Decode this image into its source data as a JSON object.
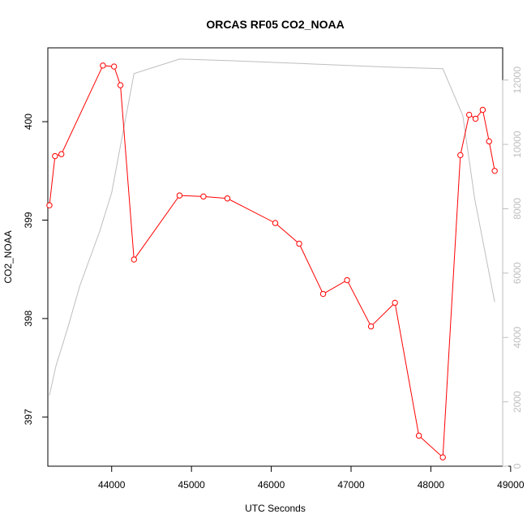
{
  "chart_data": {
    "type": "line",
    "title": "ORCAS RF05 CO2_NOAA",
    "xlabel": "UTC Seconds",
    "ylabel": "CO2_NOAA",
    "xlim": [
      43200,
      48900
    ],
    "ylim": [
      396.5,
      400.75
    ],
    "y2lim": [
      0,
      13000
    ],
    "x_ticks": [
      44000,
      45000,
      46000,
      47000,
      48000,
      49000
    ],
    "y_ticks": [
      397,
      398,
      399,
      400
    ],
    "y2_ticks": [
      0,
      2000,
      4000,
      6000,
      8000,
      10000,
      12000
    ],
    "grid": false,
    "series": [
      {
        "color": "#ff0000",
        "markers": "open-circle",
        "axis": "left",
        "x": [
          43220,
          43290,
          43370,
          43890,
          44030,
          44110,
          44280,
          44850,
          45150,
          45450,
          46050,
          46350,
          46650,
          46950,
          47250,
          47550,
          47850,
          48150,
          48370,
          48480,
          48560,
          48650,
          48730,
          48800
        ],
        "y": [
          399.15,
          399.65,
          399.67,
          400.57,
          400.56,
          400.37,
          398.6,
          399.25,
          399.24,
          399.22,
          398.97,
          398.76,
          398.25,
          398.39,
          397.92,
          398.16,
          396.81,
          396.59,
          399.66,
          400.07,
          400.03,
          400.12,
          399.8,
          399.5
        ]
      },
      {
        "color": "#bebebe",
        "markers": "none",
        "axis": "right",
        "x": [
          43220,
          43300,
          43450,
          43600,
          43850,
          44000,
          44280,
          44850,
          45500,
          46500,
          47500,
          48150,
          48400,
          48550,
          48800
        ],
        "y": [
          2200,
          3100,
          4300,
          5600,
          7300,
          8500,
          12200,
          12650,
          12600,
          12500,
          12400,
          12350,
          10900,
          8300,
          5100
        ]
      }
    ]
  }
}
